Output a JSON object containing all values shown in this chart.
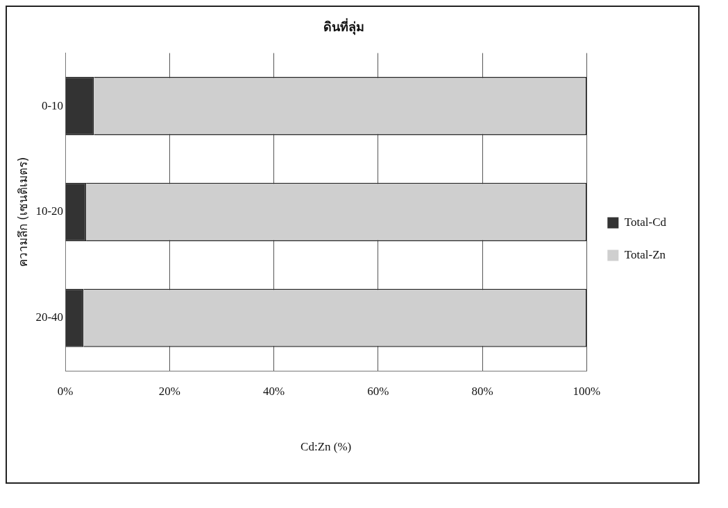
{
  "chart_data": {
    "type": "bar",
    "title": "ดินที่ลุ่ม",
    "xlabel": "Cd:Zn (%)",
    "ylabel": "ความลึก (เซนติเมตร)",
    "orientation": "horizontal",
    "stacked": true,
    "categories": [
      "0-10",
      "10-20",
      "20-40"
    ],
    "series": [
      {
        "name": "Total-Cd",
        "color": "#333333",
        "values": [
          5.5,
          4,
          3.5
        ]
      },
      {
        "name": "Total-Zn",
        "color": "#cfcfcf",
        "values": [
          94.5,
          96,
          96.5
        ]
      }
    ],
    "xlim": [
      0,
      100
    ],
    "xticks": [
      {
        "value": 0,
        "label": "0%"
      },
      {
        "value": 20,
        "label": "20%"
      },
      {
        "value": 40,
        "label": "40%"
      },
      {
        "value": 60,
        "label": "60%"
      },
      {
        "value": 80,
        "label": "80%"
      },
      {
        "value": 100,
        "label": "100%"
      }
    ],
    "grid": "x",
    "legend": "right"
  }
}
